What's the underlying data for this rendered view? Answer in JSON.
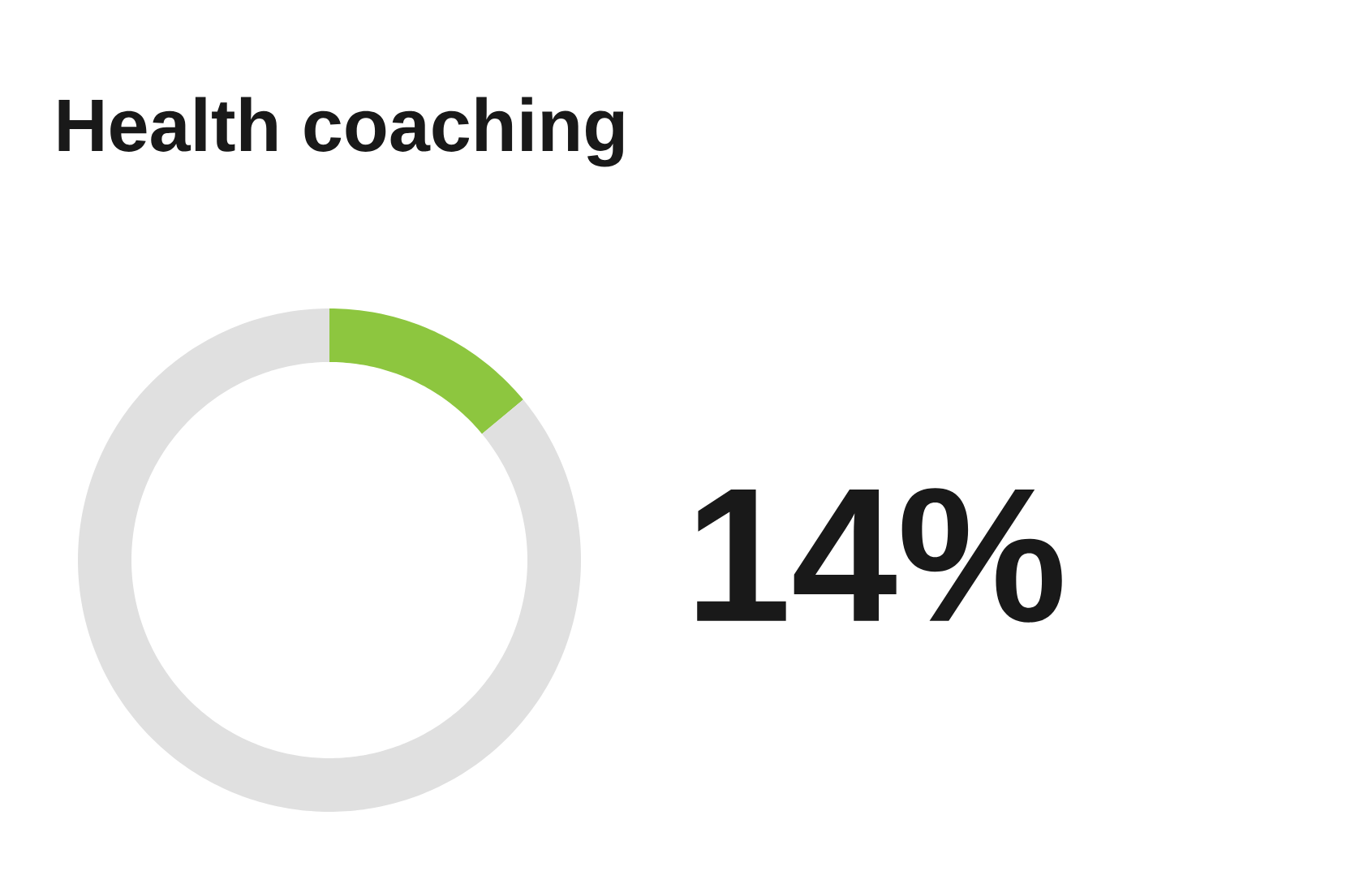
{
  "chart_data": {
    "type": "donut",
    "title": "Health coaching",
    "categories": [
      null,
      null
    ],
    "values": [
      14,
      86
    ],
    "colors": [
      "#8dc63f",
      "#e0e0e0"
    ],
    "annotations": [
      "14%"
    ]
  }
}
